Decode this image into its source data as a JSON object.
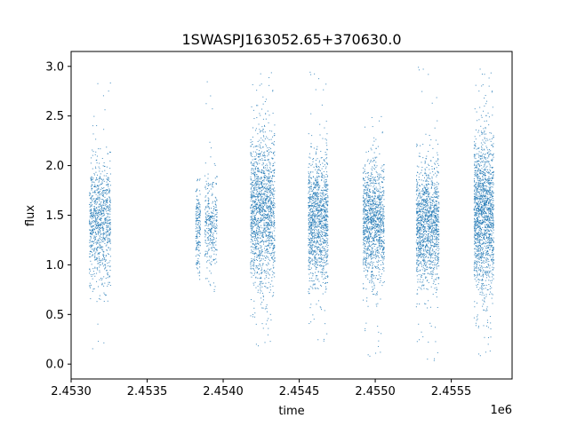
{
  "chart_data": {
    "type": "scatter",
    "title": "1SWASPJ163052.65+370630.0",
    "xlabel": "time",
    "ylabel": "flux",
    "x_offset_label": "1e6",
    "xlim": [
      2453000,
      2455900
    ],
    "ylim": [
      -0.15,
      3.15
    ],
    "x_ticks": [
      2453000,
      2453500,
      2454000,
      2454500,
      2455000,
      2455500
    ],
    "x_tick_labels": [
      "2.4530",
      "2.4535",
      "2.4540",
      "2.4545",
      "2.4550",
      "2.4555"
    ],
    "y_ticks": [
      0.0,
      0.5,
      1.0,
      1.5,
      2.0,
      2.5,
      3.0
    ],
    "y_tick_labels": [
      "0.0",
      "0.5",
      "1.0",
      "1.5",
      "2.0",
      "2.5",
      "3.0"
    ],
    "grid": false,
    "legend": "none",
    "marker_color": "#1f77b4",
    "series": [
      {
        "clusters": [
          {
            "x_start": 2453120,
            "x_end": 2453260,
            "center": 1.42,
            "spread": 0.3,
            "min": 0.05,
            "max": 2.95,
            "n": 900
          },
          {
            "x_start": 2453820,
            "x_end": 2453850,
            "center": 1.38,
            "spread": 0.22,
            "min": 0.85,
            "max": 1.9,
            "n": 180
          },
          {
            "x_start": 2453880,
            "x_end": 2453960,
            "center": 1.4,
            "spread": 0.25,
            "min": 0.45,
            "max": 2.95,
            "n": 320
          },
          {
            "x_start": 2454180,
            "x_end": 2454340,
            "center": 1.52,
            "spread": 0.4,
            "min": 0.15,
            "max": 3.0,
            "n": 1500
          },
          {
            "x_start": 2454560,
            "x_end": 2454690,
            "center": 1.45,
            "spread": 0.32,
            "min": 0.2,
            "max": 2.95,
            "n": 1200
          },
          {
            "x_start": 2454920,
            "x_end": 2455060,
            "center": 1.42,
            "spread": 0.3,
            "min": 0.05,
            "max": 2.55,
            "n": 1200
          },
          {
            "x_start": 2455270,
            "x_end": 2455420,
            "center": 1.4,
            "spread": 0.3,
            "min": 0.0,
            "max": 3.0,
            "n": 1300
          },
          {
            "x_start": 2455650,
            "x_end": 2455780,
            "center": 1.5,
            "spread": 0.4,
            "min": 0.05,
            "max": 3.0,
            "n": 1600
          }
        ]
      }
    ]
  }
}
